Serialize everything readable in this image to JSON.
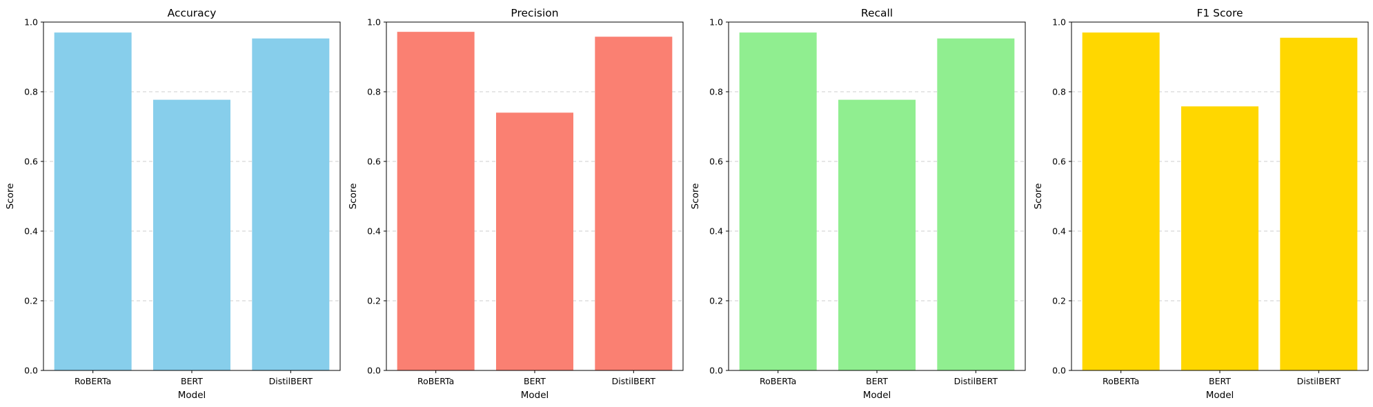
{
  "chart_data": [
    {
      "type": "bar",
      "title": "Accuracy",
      "xlabel": "Model",
      "ylabel": "Score",
      "categories": [
        "RoBERTa",
        "BERT",
        "DistilBERT"
      ],
      "values": [
        0.97,
        0.777,
        0.953
      ],
      "color": "#87CEEB",
      "ylim": [
        0,
        1.0
      ],
      "yticks": [
        "0.0",
        "0.2",
        "0.4",
        "0.6",
        "0.8",
        "1.0"
      ],
      "grid": "y dashed"
    },
    {
      "type": "bar",
      "title": "Precision",
      "xlabel": "Model",
      "ylabel": "Score",
      "categories": [
        "RoBERTa",
        "BERT",
        "DistilBERT"
      ],
      "values": [
        0.972,
        0.74,
        0.958
      ],
      "color": "#FA8072",
      "ylim": [
        0,
        1.0
      ],
      "yticks": [
        "0.0",
        "0.2",
        "0.4",
        "0.6",
        "0.8",
        "1.0"
      ],
      "grid": "y dashed"
    },
    {
      "type": "bar",
      "title": "Recall",
      "xlabel": "Model",
      "ylabel": "Score",
      "categories": [
        "RoBERTa",
        "BERT",
        "DistilBERT"
      ],
      "values": [
        0.97,
        0.777,
        0.953
      ],
      "color": "#90EE90",
      "ylim": [
        0,
        1.0
      ],
      "yticks": [
        "0.0",
        "0.2",
        "0.4",
        "0.6",
        "0.8",
        "1.0"
      ],
      "grid": "y dashed"
    },
    {
      "type": "bar",
      "title": "F1 Score",
      "xlabel": "Model",
      "ylabel": "Score",
      "categories": [
        "RoBERTa",
        "BERT",
        "DistilBERT"
      ],
      "values": [
        0.97,
        0.758,
        0.955
      ],
      "color": "#FFD700",
      "ylim": [
        0,
        1.0
      ],
      "yticks": [
        "0.0",
        "0.2",
        "0.4",
        "0.6",
        "0.8",
        "1.0"
      ],
      "grid": "y dashed"
    }
  ]
}
